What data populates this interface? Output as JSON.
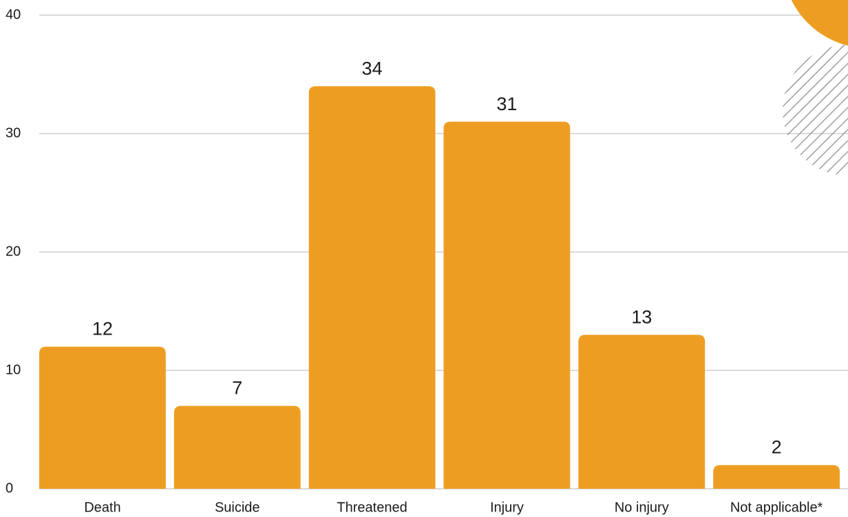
{
  "chart_data": {
    "type": "bar",
    "categories": [
      "Death",
      "Suicide",
      "Threatened",
      "Injury",
      "No injury",
      "Not applicable*"
    ],
    "values": [
      12,
      7,
      34,
      31,
      13,
      2
    ],
    "color": "#ed9e22",
    "ylim": [
      0,
      40
    ],
    "yticks": [
      0,
      10,
      20,
      30,
      40
    ],
    "grid": true
  }
}
